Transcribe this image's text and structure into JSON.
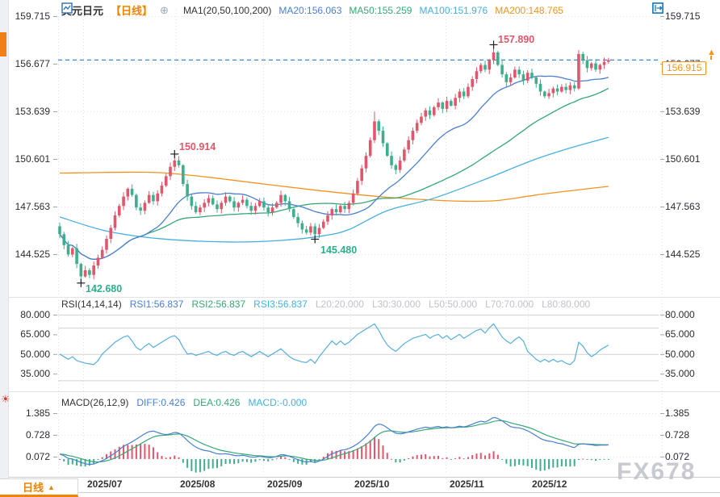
{
  "header": {
    "symbol": "美元日元",
    "period_tag": "【日线】",
    "ma_label": "MA1(20,50,100,200)",
    "ma20": "MA20:156.063",
    "ma50": "MA50:155.259",
    "ma100": "MA100:151.976",
    "ma200": "MA200:148.765"
  },
  "rsi_header": {
    "name": "RSI(14,14,14)",
    "rsi1": "RSI1:56.837",
    "rsi2": "RSI2:56.837",
    "rsi3": "RSI3:56.837",
    "levels": [
      "L20:20.000",
      "L30:30.000",
      "L50:50.000",
      "L70:70.000",
      "L80:80.000"
    ]
  },
  "macd_header": {
    "name": "MACD(26,12,9)",
    "diff": "DIFF:0.426",
    "dea": "DEA:0.426",
    "macd": "MACD:-0.000"
  },
  "price_marker": {
    "value": "156.915"
  },
  "bottom_tab": {
    "label": "日线",
    "arrow": "▲"
  },
  "watermark": "FX678",
  "axes": {
    "price_labels": [
      "159.715",
      "156.677",
      "153.639",
      "150.601",
      "147.563",
      "144.525"
    ],
    "rsi_labels": [
      "80.000",
      "65.000",
      "50.000",
      "35.000"
    ],
    "macd_labels": [
      "1.385",
      "0.728",
      "0.072"
    ],
    "months": [
      "2025/07",
      "2025/08",
      "2025/09",
      "2025/10",
      "2025/11",
      "2025/12"
    ]
  },
  "colors": {
    "up_candle": "#e0566c",
    "down_candle": "#3fae8c",
    "ma20": "#4a7fd0",
    "ma50": "#35a877",
    "ma100": "#45b0e0",
    "ma200": "#f0941f",
    "rsi_line": "#56aede",
    "diff_line": "#4a7fd0",
    "dea_line": "#35a877",
    "dashed_price_line": "#3a87d2",
    "accent_orange": "#f08300",
    "grid": "#e2e2e8",
    "ref_line": "#d2d2d6"
  },
  "chart_data": [
    {
      "type": "candlestick",
      "title": "美元日元 日线",
      "x_tick_labels": [
        "2025/07",
        "2025/08",
        "2025/09",
        "2025/10",
        "2025/11",
        "2025/12"
      ],
      "y_grid_levels": [
        159.715,
        156.677,
        153.639,
        150.601,
        147.563,
        144.525
      ],
      "current_price": 156.915,
      "first_open": 146.3,
      "closes": [
        145.8,
        145.1,
        144.5,
        144.9,
        143.9,
        143.1,
        143.5,
        143.2,
        143.8,
        144.3,
        144.8,
        145.5,
        146.2,
        147.0,
        147.6,
        148.2,
        148.7,
        148.3,
        147.5,
        147.3,
        147.8,
        148.3,
        147.9,
        148.4,
        148.9,
        149.5,
        150.1,
        150.5,
        150.2,
        149.0,
        148.2,
        147.6,
        147.2,
        147.5,
        147.8,
        148.1,
        147.7,
        147.4,
        147.8,
        148.2,
        147.9,
        147.5,
        147.8,
        148.0,
        147.6,
        147.3,
        147.6,
        147.9,
        147.5,
        147.2,
        147.5,
        147.8,
        148.3,
        147.9,
        147.4,
        146.9,
        146.5,
        146.1,
        145.9,
        146.3,
        145.8,
        146.2,
        146.6,
        147.0,
        147.4,
        147.2,
        147.6,
        147.4,
        147.8,
        148.4,
        149.2,
        150.0,
        150.8,
        151.8,
        153.0,
        152.4,
        151.6,
        150.8,
        150.2,
        149.9,
        150.5,
        151.2,
        151.8,
        152.4,
        152.9,
        153.3,
        153.7,
        153.4,
        153.9,
        154.2,
        153.8,
        154.3,
        154.0,
        154.5,
        154.9,
        154.6,
        155.2,
        155.7,
        156.2,
        156.6,
        156.3,
        156.9,
        157.4,
        156.6,
        156.0,
        155.5,
        155.8,
        156.3,
        156.0,
        155.6,
        156.1,
        155.8,
        155.4,
        154.9,
        154.6,
        154.8,
        155.1,
        154.9,
        155.2,
        155.0,
        155.3,
        155.1,
        157.3,
        156.9,
        156.4,
        156.7,
        156.3,
        156.6,
        156.8,
        156.915
      ],
      "extremes": {
        "5": {
          "low": 142.68
        },
        "27": {
          "high": 150.914
        },
        "60": {
          "low": 145.48
        },
        "74": {
          "high": 153.62
        },
        "102": {
          "high": 157.89
        },
        "122": {
          "high": 157.55
        }
      },
      "ma": {
        "ma20_period": 20,
        "ma50_period": 50,
        "ma100_points": [
          [
            0,
            146.9
          ],
          [
            11,
            146.0
          ],
          [
            24,
            145.5
          ],
          [
            40,
            145.3
          ],
          [
            52,
            145.4
          ],
          [
            62,
            145.7
          ],
          [
            68,
            146.1
          ],
          [
            77,
            147.3
          ],
          [
            88,
            148.1
          ],
          [
            100,
            149.3
          ],
          [
            111,
            150.5
          ],
          [
            120,
            151.3
          ],
          [
            129,
            151.98
          ]
        ],
        "ma200_points": [
          [
            0,
            149.7
          ],
          [
            20,
            149.75
          ],
          [
            31,
            149.55
          ],
          [
            48,
            149.0
          ],
          [
            62,
            148.55
          ],
          [
            75,
            148.2
          ],
          [
            86,
            148.0
          ],
          [
            95,
            147.9
          ],
          [
            103,
            147.95
          ],
          [
            112,
            148.3
          ],
          [
            121,
            148.6
          ],
          [
            129,
            148.85
          ]
        ]
      },
      "annotations": [
        {
          "index": 102,
          "side": "high",
          "text": "157.890"
        },
        {
          "index": 27,
          "side": "high",
          "text": "150.914"
        },
        {
          "index": 60,
          "side": "low",
          "text": "145.480"
        },
        {
          "index": 5,
          "side": "low",
          "text": "142.680"
        }
      ]
    },
    {
      "type": "line",
      "name": "RSI",
      "ref_levels": [
        80,
        70,
        50,
        30
      ],
      "y_tick_labels": [
        80,
        65,
        50,
        35
      ],
      "values": [
        50,
        48,
        46,
        48,
        45,
        44,
        43,
        42.5,
        42,
        45,
        50,
        53,
        56,
        59,
        61,
        63,
        64,
        60,
        55,
        53,
        56,
        58,
        55,
        57,
        59,
        61,
        63,
        64,
        61,
        55,
        50,
        50.5,
        49,
        50,
        51,
        52,
        50,
        49,
        51,
        52,
        50,
        49,
        51,
        52,
        50,
        48,
        50,
        52,
        50,
        48,
        50,
        52,
        54,
        51,
        48,
        46,
        45,
        44,
        43.5,
        46,
        43,
        48,
        52,
        56,
        60,
        57,
        60,
        57,
        59,
        62,
        65,
        67,
        69,
        71,
        73,
        68,
        62,
        57,
        54,
        52,
        55,
        58,
        60,
        62,
        63,
        64,
        65,
        62,
        64,
        65,
        62,
        64,
        61,
        63,
        65,
        62,
        64,
        66,
        68,
        69,
        66,
        70,
        73,
        68,
        63,
        60,
        58,
        61,
        63,
        60,
        52,
        49,
        46,
        44,
        46,
        44,
        46,
        44,
        45,
        43,
        42,
        45,
        59,
        56,
        51,
        48,
        50,
        53,
        55,
        56.8
      ]
    },
    {
      "type": "macd",
      "name": "MACD",
      "grid_levels": [
        1.385,
        0.728,
        0.072
      ],
      "diff": [
        0.15,
        0.1,
        0.02,
        0.0,
        -0.05,
        -0.1,
        -0.14,
        -0.16,
        -0.15,
        -0.1,
        -0.05,
        0.02,
        0.1,
        0.18,
        0.28,
        0.38,
        0.45,
        0.52,
        0.6,
        0.68,
        0.76,
        0.82,
        0.84,
        0.8,
        0.76,
        0.74,
        0.76,
        0.8,
        0.78,
        0.68,
        0.56,
        0.45,
        0.36,
        0.3,
        0.26,
        0.24,
        0.2,
        0.16,
        0.15,
        0.16,
        0.14,
        0.11,
        0.1,
        0.11,
        0.09,
        0.06,
        0.06,
        0.08,
        0.06,
        0.04,
        0.05,
        0.08,
        0.13,
        0.12,
        0.08,
        0.03,
        -0.02,
        -0.06,
        -0.09,
        -0.07,
        -0.1,
        -0.06,
        0.0,
        0.08,
        0.16,
        0.2,
        0.26,
        0.28,
        0.32,
        0.38,
        0.46,
        0.56,
        0.68,
        0.82,
        0.98,
        1.05,
        1.02,
        0.94,
        0.85,
        0.78,
        0.76,
        0.78,
        0.82,
        0.86,
        0.9,
        0.93,
        0.96,
        0.94,
        0.96,
        0.98,
        0.95,
        0.97,
        0.94,
        0.96,
        0.99,
        0.97,
        1.0,
        1.05,
        1.1,
        1.14,
        1.12,
        1.18,
        1.25,
        1.22,
        1.15,
        1.06,
        0.98,
        0.95,
        0.94,
        0.9,
        0.85,
        0.78,
        0.7,
        0.62,
        0.57,
        0.54,
        0.52,
        0.48,
        0.46,
        0.42,
        0.38,
        0.35,
        0.44,
        0.46,
        0.44,
        0.43,
        0.41,
        0.42,
        0.42,
        0.426
      ]
    }
  ]
}
